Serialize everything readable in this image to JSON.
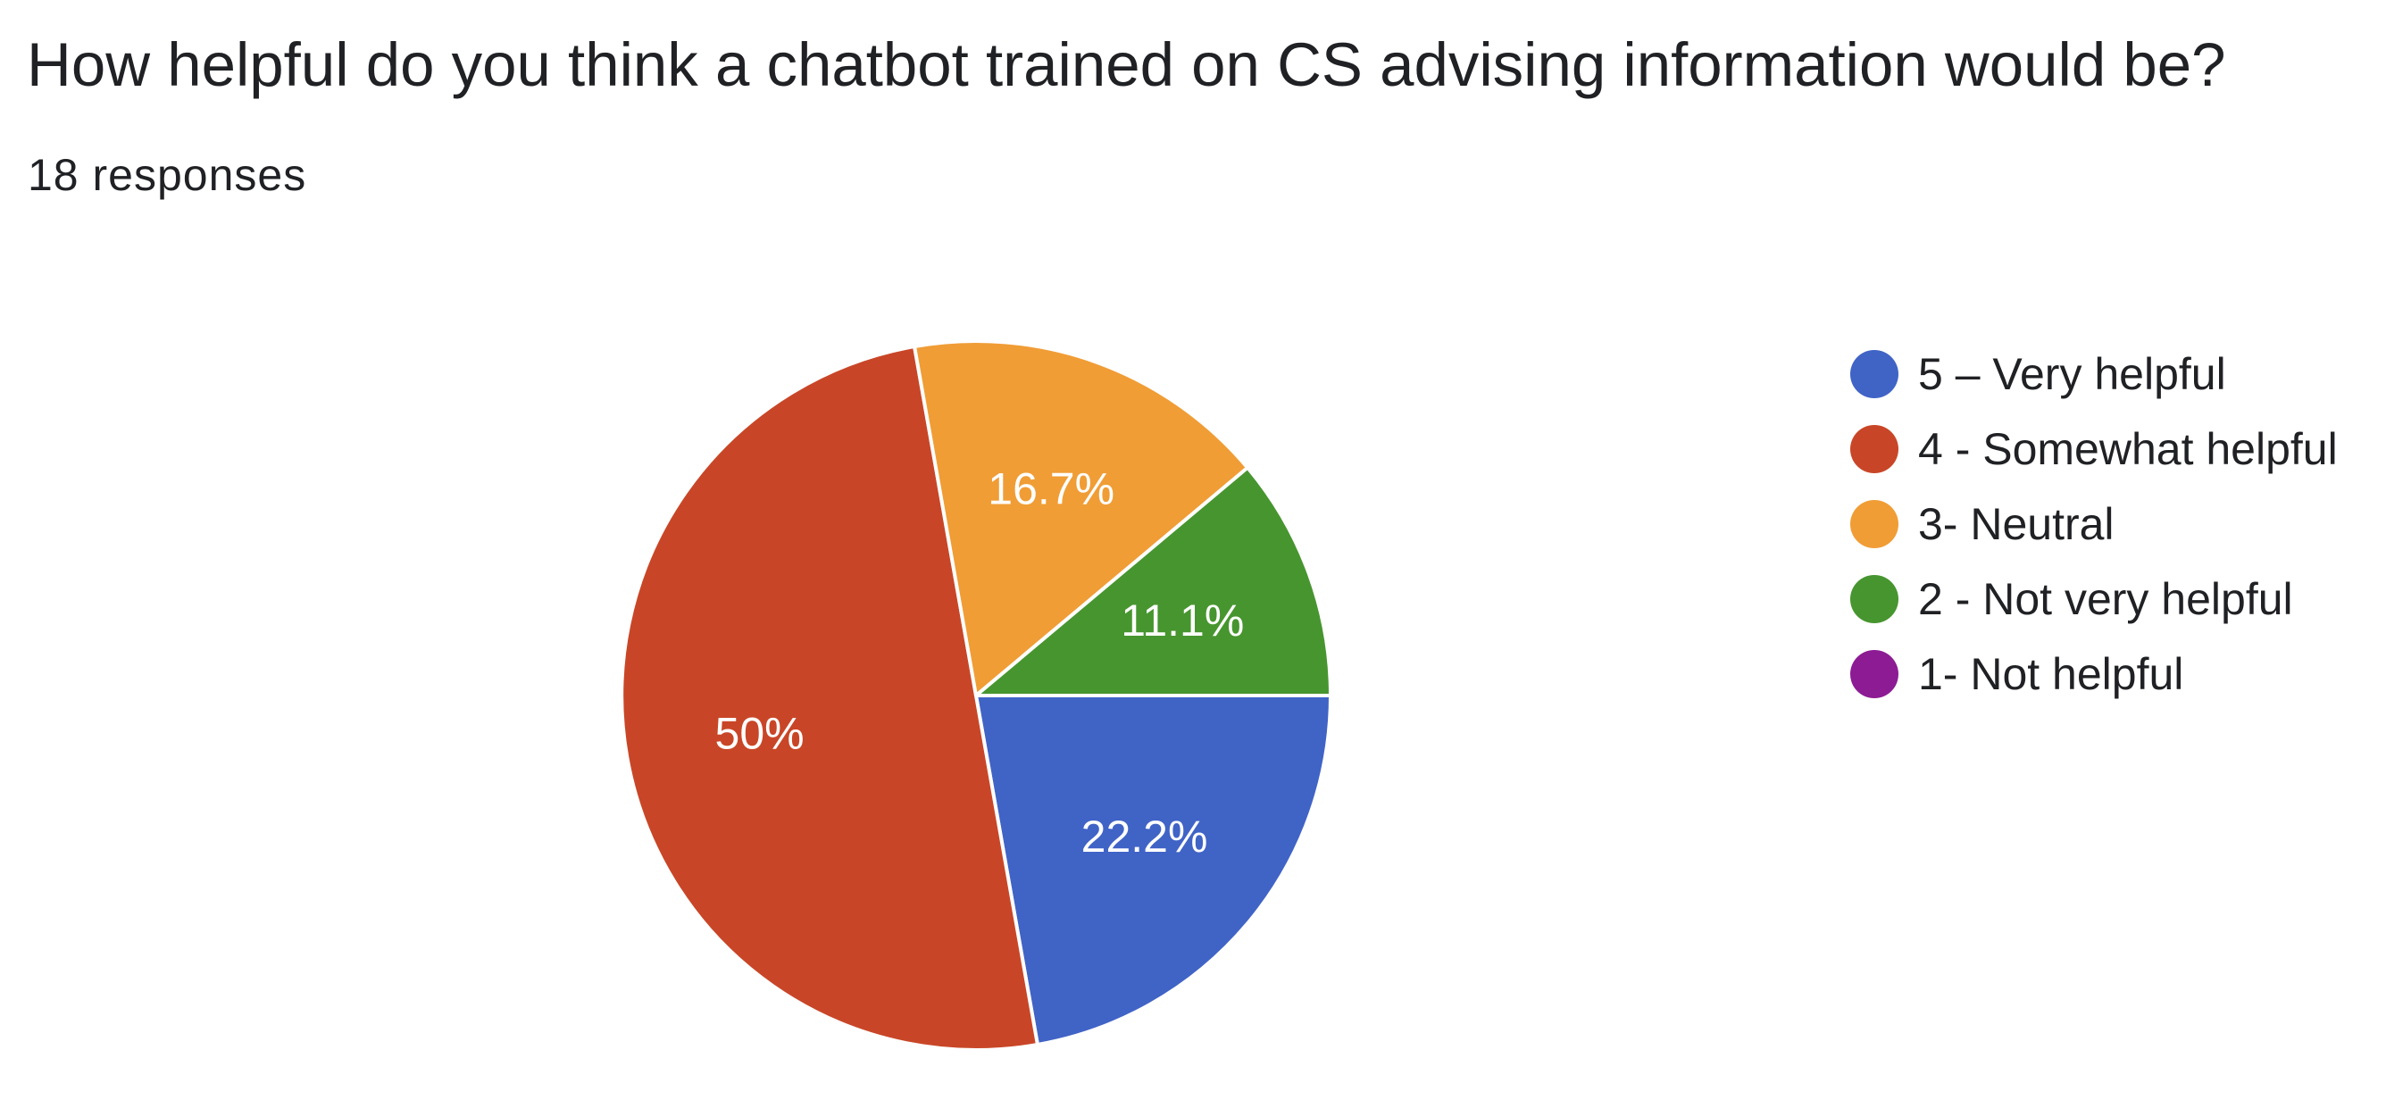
{
  "question": {
    "title": "How helpful do you think a chatbot trained on CS advising information would be?",
    "response_count": "18 responses"
  },
  "chart_data": {
    "type": "pie",
    "title": "How helpful do you think a chatbot trained on CS advising information would be?",
    "subtitle": "18 responses",
    "categories": [
      "5 – Very helpful",
      "4 - Somewhat helpful",
      "3- Neutral",
      "2 - Not very helpful",
      "1- Not helpful"
    ],
    "values": [
      4,
      9,
      3,
      2,
      0
    ],
    "percent_labels": [
      "22.2%",
      "50%",
      "16.7%",
      "11.1%",
      ""
    ],
    "colors": [
      "#4063c6",
      "#c84627",
      "#f09d36",
      "#47952f",
      "#8c1b94"
    ],
    "legend_position": "right",
    "start_angle_deg": 0,
    "direction": "clockwise"
  }
}
